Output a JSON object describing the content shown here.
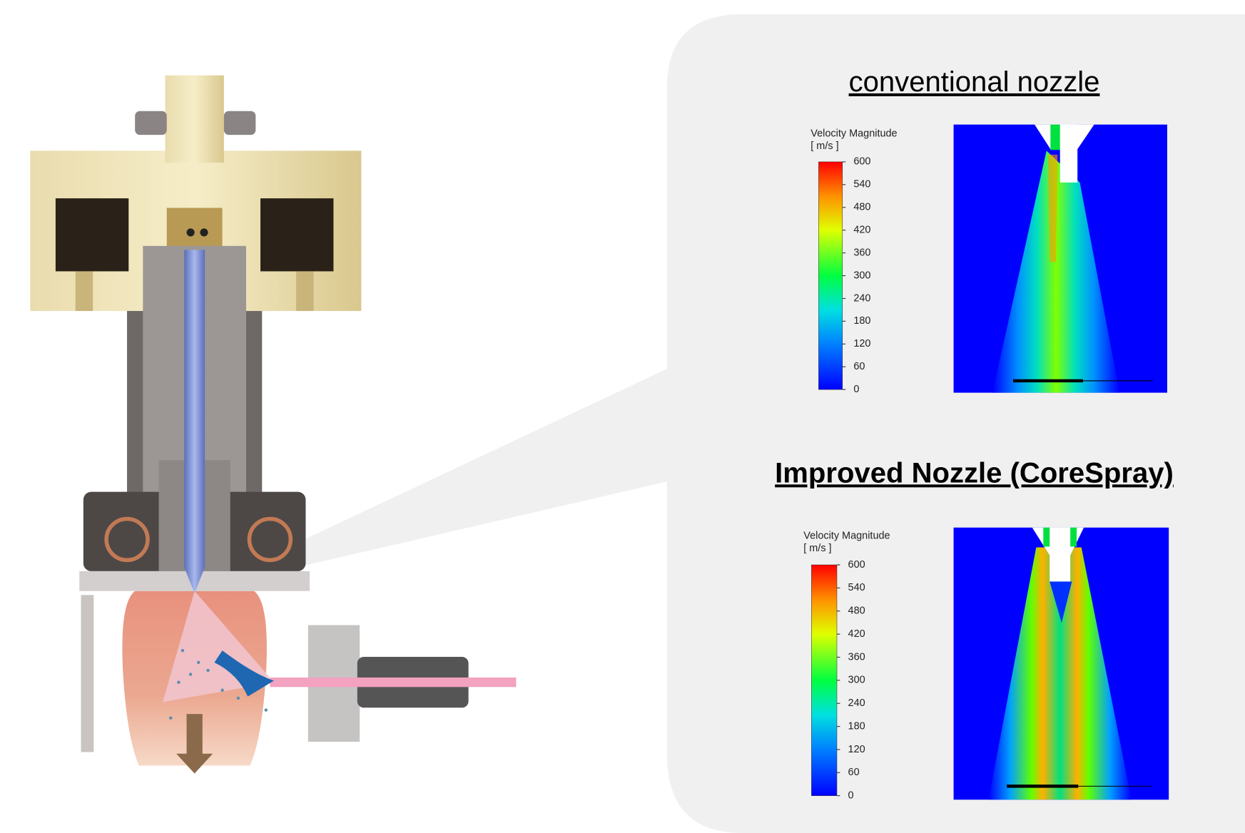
{
  "panels": [
    {
      "title": "conventional nozzle",
      "legend": {
        "title": "Velocity Magnitude",
        "unit": "[ m/s ]",
        "ticks": [
          0,
          60,
          120,
          180,
          240,
          300,
          360,
          420,
          480,
          540,
          600
        ]
      }
    },
    {
      "title": "Improved Nozzle (CoreSpray)",
      "legend": {
        "title": "Velocity Magnitude",
        "unit": "[ m/s ]",
        "ticks": [
          0,
          60,
          120,
          180,
          240,
          300,
          360,
          420,
          480,
          540,
          600
        ]
      }
    }
  ]
}
